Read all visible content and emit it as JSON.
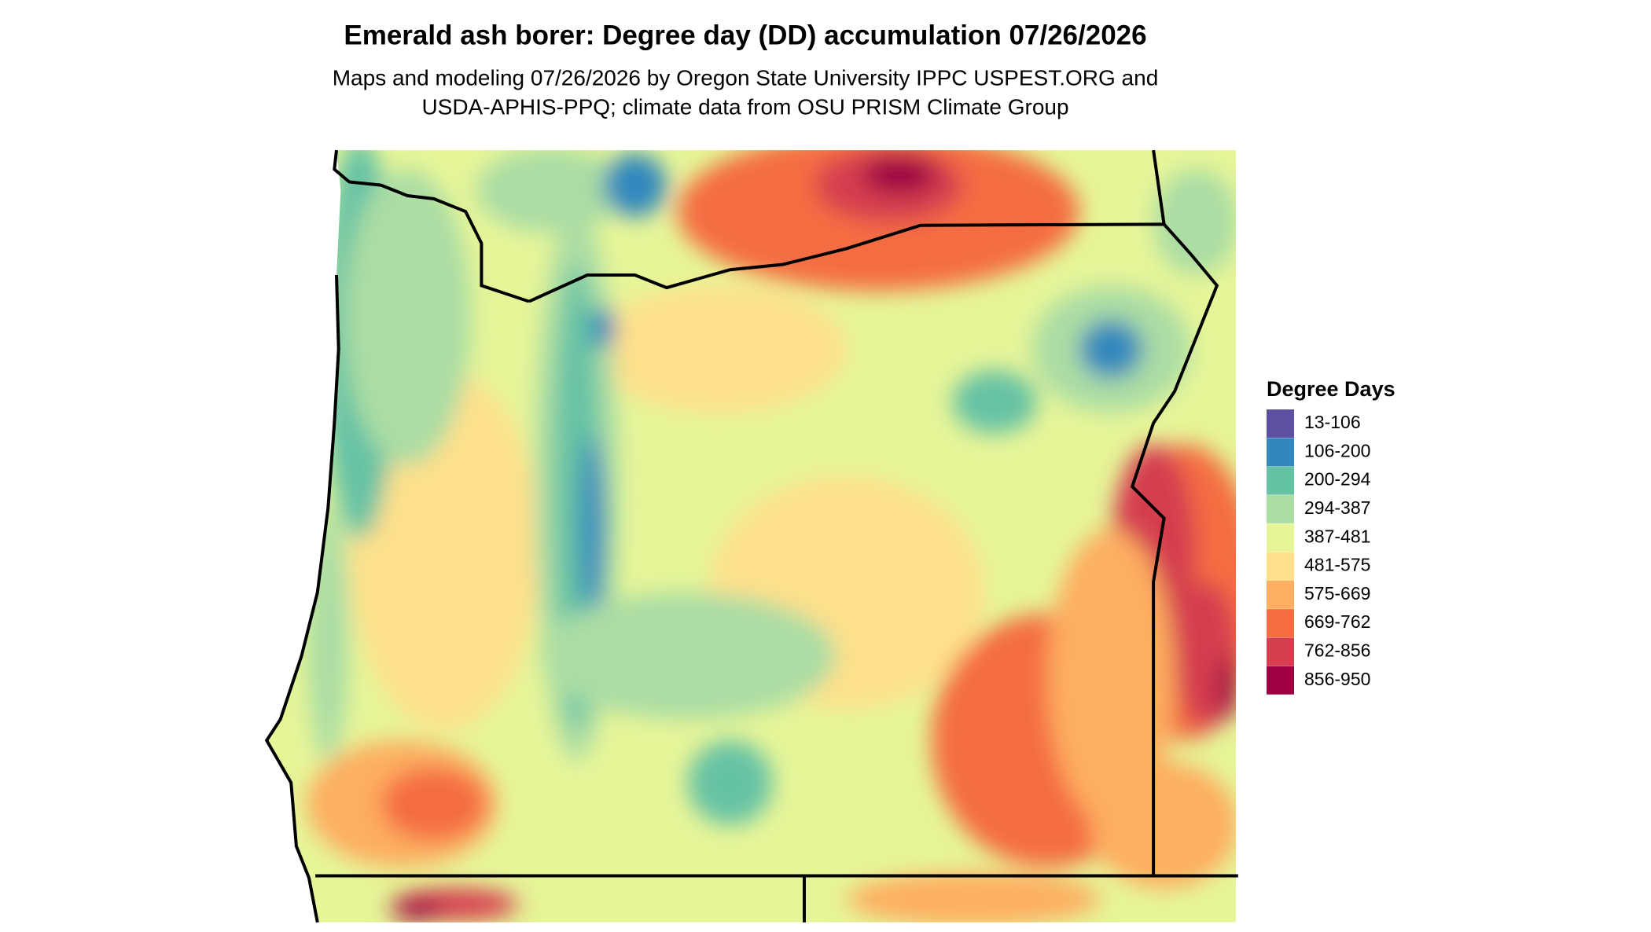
{
  "header": {
    "title": "Emerald ash borer: Degree day (DD) accumulation 07/26/2026",
    "subtitle": [
      "Maps and modeling 07/26/2026 by Oregon State University IPPC USPEST.ORG and",
      "USDA-APHIS-PPQ; climate data from OSU PRISM Climate Group"
    ]
  },
  "legend": {
    "title": "Degree Days",
    "items": [
      {
        "label": "13-106",
        "color": "#5e4fa2"
      },
      {
        "label": "106-200",
        "color": "#3288bd"
      },
      {
        "label": "200-294",
        "color": "#66c2a5"
      },
      {
        "label": "294-387",
        "color": "#abdda4"
      },
      {
        "label": "387-481",
        "color": "#e6f598"
      },
      {
        "label": "481-575",
        "color": "#fee08b"
      },
      {
        "label": "575-669",
        "color": "#fdae61"
      },
      {
        "label": "669-762",
        "color": "#f46d43"
      },
      {
        "label": "762-856",
        "color": "#d53e4f"
      },
      {
        "label": "856-950",
        "color": "#9e0142"
      }
    ]
  }
}
